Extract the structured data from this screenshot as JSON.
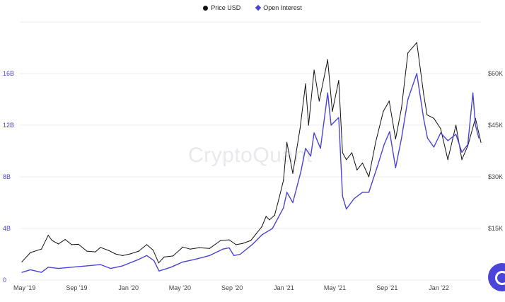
{
  "watermark": "CryptoQuant",
  "colors": {
    "price": "#111111",
    "oi": "#4b44d8",
    "left_axis": "#4b44d8",
    "right_axis": "#444444",
    "grid": "#ececec"
  },
  "legend": [
    {
      "label": "Price USD",
      "color": "#111111",
      "shape": "circle"
    },
    {
      "label": "Open Interest",
      "color": "#4b44d8",
      "shape": "diamond"
    }
  ],
  "chat_button": {
    "icon": "chat-bubble-icon"
  },
  "chart_data": {
    "type": "line",
    "xlabel": "",
    "ylabel": "",
    "x_ticks": [
      "May '19",
      "Sep '19",
      "Jan '20",
      "May '20",
      "Sep '20",
      "Jan '21",
      "May '21",
      "Sep '21",
      "Jan '22"
    ],
    "x_tick_dates": [
      "2019-05-01",
      "2019-09-01",
      "2020-01-01",
      "2020-05-01",
      "2020-09-01",
      "2021-01-01",
      "2021-05-01",
      "2021-09-01",
      "2022-01-01"
    ],
    "xlim": [
      "2019-04-20",
      "2022-04-10"
    ],
    "left_axis": {
      "ticks": [
        "0",
        "4B",
        "8B",
        "12B",
        "16B"
      ],
      "ylim": [
        0,
        20
      ]
    },
    "right_axis": {
      "ticks": [
        "$15K",
        "$30K",
        "$45K",
        "$60K"
      ],
      "ylim": [
        0,
        75
      ]
    },
    "grid": true,
    "legend_position": "top-center",
    "series": [
      {
        "name": "Price USD",
        "axis": "right",
        "points": [
          [
            "2019-04-25",
            5.3
          ],
          [
            "2019-05-15",
            8.0
          ],
          [
            "2019-06-10",
            9.0
          ],
          [
            "2019-06-26",
            13.0
          ],
          [
            "2019-07-05",
            11.5
          ],
          [
            "2019-07-20",
            10.5
          ],
          [
            "2019-08-05",
            11.8
          ],
          [
            "2019-08-20",
            10.3
          ],
          [
            "2019-09-05",
            10.4
          ],
          [
            "2019-09-25",
            8.4
          ],
          [
            "2019-10-15",
            8.2
          ],
          [
            "2019-10-27",
            9.5
          ],
          [
            "2019-11-15",
            8.6
          ],
          [
            "2019-12-01",
            7.6
          ],
          [
            "2019-12-18",
            7.1
          ],
          [
            "2020-01-05",
            7.6
          ],
          [
            "2020-01-25",
            8.4
          ],
          [
            "2020-02-13",
            10.3
          ],
          [
            "2020-02-28",
            8.7
          ],
          [
            "2020-03-12",
            5.0
          ],
          [
            "2020-03-25",
            6.7
          ],
          [
            "2020-04-15",
            7.0
          ],
          [
            "2020-05-08",
            9.6
          ],
          [
            "2020-05-25",
            9.0
          ],
          [
            "2020-06-15",
            9.4
          ],
          [
            "2020-07-10",
            9.2
          ],
          [
            "2020-08-05",
            11.5
          ],
          [
            "2020-08-25",
            11.7
          ],
          [
            "2020-09-10",
            10.3
          ],
          [
            "2020-09-25",
            10.6
          ],
          [
            "2020-10-15",
            11.5
          ],
          [
            "2020-10-28",
            13.5
          ],
          [
            "2020-11-10",
            15.5
          ],
          [
            "2020-11-20",
            18.5
          ],
          [
            "2020-11-28",
            17.5
          ],
          [
            "2020-12-10",
            18.8
          ],
          [
            "2020-12-20",
            23.5
          ],
          [
            "2020-12-31",
            29.0
          ],
          [
            "2021-01-08",
            40.0
          ],
          [
            "2021-01-22",
            31.0
          ],
          [
            "2021-02-08",
            44.0
          ],
          [
            "2021-02-21",
            57.0
          ],
          [
            "2021-02-28",
            45.0
          ],
          [
            "2021-03-13",
            61.0
          ],
          [
            "2021-03-25",
            52.0
          ],
          [
            "2021-04-14",
            64.0
          ],
          [
            "2021-04-25",
            49.0
          ],
          [
            "2021-05-10",
            58.0
          ],
          [
            "2021-05-19",
            37.0
          ],
          [
            "2021-05-28",
            35.0
          ],
          [
            "2021-06-10",
            37.0
          ],
          [
            "2021-06-22",
            32.0
          ],
          [
            "2021-07-05",
            34.0
          ],
          [
            "2021-07-20",
            30.0
          ],
          [
            "2021-08-05",
            40.0
          ],
          [
            "2021-08-23",
            49.0
          ],
          [
            "2021-09-06",
            52.0
          ],
          [
            "2021-09-21",
            41.0
          ],
          [
            "2021-10-05",
            50.0
          ],
          [
            "2021-10-20",
            66.0
          ],
          [
            "2021-11-10",
            69.0
          ],
          [
            "2021-11-26",
            54.0
          ],
          [
            "2021-12-04",
            48.0
          ],
          [
            "2021-12-20",
            47.0
          ],
          [
            "2022-01-05",
            44.0
          ],
          [
            "2022-01-22",
            35.0
          ],
          [
            "2022-02-10",
            45.0
          ],
          [
            "2022-02-24",
            35.0
          ],
          [
            "2022-03-10",
            39.0
          ],
          [
            "2022-03-28",
            47.0
          ],
          [
            "2022-04-10",
            40.0
          ]
        ]
      },
      {
        "name": "Open Interest",
        "axis": "left",
        "points": [
          [
            "2019-04-25",
            0.6
          ],
          [
            "2019-05-15",
            0.8
          ],
          [
            "2019-06-10",
            0.6
          ],
          [
            "2019-06-26",
            1.0
          ],
          [
            "2019-07-20",
            0.9
          ],
          [
            "2019-08-20",
            1.0
          ],
          [
            "2019-09-25",
            1.1
          ],
          [
            "2019-10-27",
            1.2
          ],
          [
            "2019-11-20",
            0.9
          ],
          [
            "2019-12-18",
            1.1
          ],
          [
            "2020-01-25",
            1.6
          ],
          [
            "2020-02-13",
            1.9
          ],
          [
            "2020-03-01",
            1.5
          ],
          [
            "2020-03-13",
            0.7
          ],
          [
            "2020-04-10",
            1.0
          ],
          [
            "2020-05-08",
            1.4
          ],
          [
            "2020-06-05",
            1.6
          ],
          [
            "2020-07-10",
            1.9
          ],
          [
            "2020-08-10",
            2.4
          ],
          [
            "2020-08-25",
            2.5
          ],
          [
            "2020-09-05",
            1.9
          ],
          [
            "2020-09-20",
            2.0
          ],
          [
            "2020-10-20",
            2.8
          ],
          [
            "2020-11-10",
            3.5
          ],
          [
            "2020-12-05",
            4.0
          ],
          [
            "2020-12-31",
            5.6
          ],
          [
            "2021-01-08",
            6.8
          ],
          [
            "2021-01-22",
            6.0
          ],
          [
            "2021-02-10",
            8.4
          ],
          [
            "2021-02-21",
            10.2
          ],
          [
            "2021-03-05",
            9.6
          ],
          [
            "2021-03-13",
            11.4
          ],
          [
            "2021-03-28",
            10.2
          ],
          [
            "2021-04-14",
            14.5
          ],
          [
            "2021-04-22",
            12.0
          ],
          [
            "2021-05-10",
            12.6
          ],
          [
            "2021-05-19",
            6.5
          ],
          [
            "2021-05-28",
            5.5
          ],
          [
            "2021-06-15",
            6.3
          ],
          [
            "2021-07-05",
            6.8
          ],
          [
            "2021-07-20",
            6.8
          ],
          [
            "2021-08-10",
            8.9
          ],
          [
            "2021-08-25",
            10.5
          ],
          [
            "2021-09-07",
            11.5
          ],
          [
            "2021-09-21",
            8.7
          ],
          [
            "2021-10-05",
            11.0
          ],
          [
            "2021-10-20",
            14.0
          ],
          [
            "2021-11-10",
            16.0
          ],
          [
            "2021-11-26",
            12.5
          ],
          [
            "2021-12-05",
            11.0
          ],
          [
            "2021-12-20",
            10.3
          ],
          [
            "2022-01-05",
            11.4
          ],
          [
            "2022-01-22",
            10.8
          ],
          [
            "2022-02-10",
            11.3
          ],
          [
            "2022-02-24",
            9.9
          ],
          [
            "2022-03-10",
            10.5
          ],
          [
            "2022-03-22",
            14.5
          ],
          [
            "2022-03-28",
            12.0
          ],
          [
            "2022-04-05",
            11.0
          ]
        ]
      }
    ]
  }
}
